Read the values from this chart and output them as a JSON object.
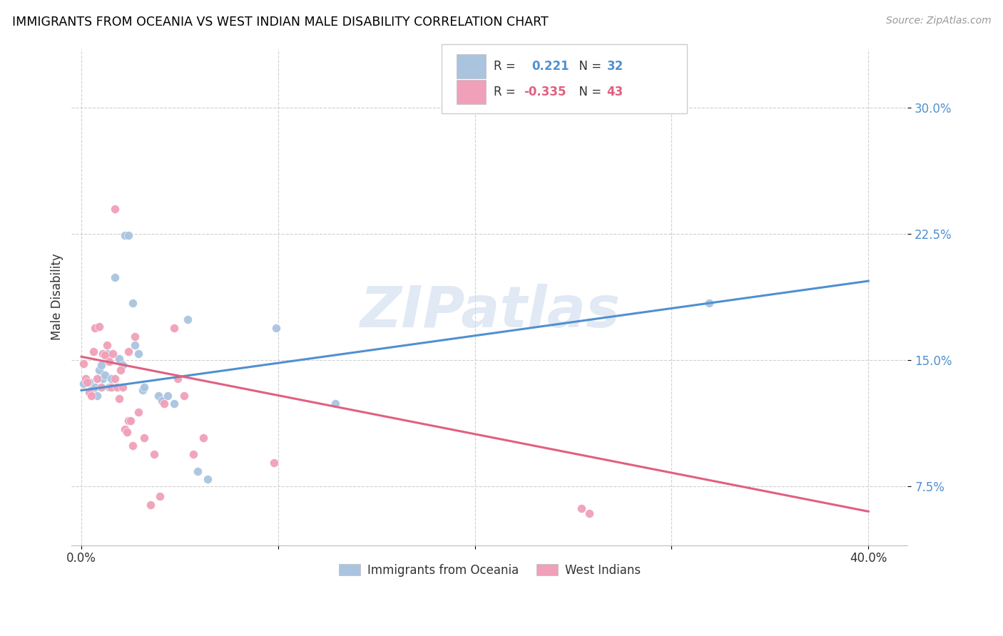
{
  "title": "IMMIGRANTS FROM OCEANIA VS WEST INDIAN MALE DISABILITY CORRELATION CHART",
  "source": "Source: ZipAtlas.com",
  "ylabel": "Male Disability",
  "y_ticks": [
    0.075,
    0.15,
    0.225,
    0.3
  ],
  "y_tick_labels": [
    "7.5%",
    "15.0%",
    "22.5%",
    "30.0%"
  ],
  "x_ticks": [
    0.0,
    0.1,
    0.2,
    0.3,
    0.4
  ],
  "x_tick_labels": [
    "0.0%",
    "",
    "",
    "",
    "40.0%"
  ],
  "xlim": [
    -0.005,
    0.42
  ],
  "ylim": [
    0.04,
    0.335
  ],
  "color_blue": "#aac4e0",
  "color_pink": "#f0a0b8",
  "line_blue": "#5090d0",
  "line_pink": "#e06080",
  "watermark": "ZIPatlas",
  "oceania_points": [
    [
      0.001,
      0.136
    ],
    [
      0.004,
      0.137
    ],
    [
      0.005,
      0.132
    ],
    [
      0.007,
      0.134
    ],
    [
      0.008,
      0.129
    ],
    [
      0.009,
      0.144
    ],
    [
      0.01,
      0.147
    ],
    [
      0.011,
      0.139
    ],
    [
      0.012,
      0.141
    ],
    [
      0.013,
      0.154
    ],
    [
      0.014,
      0.134
    ],
    [
      0.015,
      0.139
    ],
    [
      0.017,
      0.199
    ],
    [
      0.019,
      0.151
    ],
    [
      0.021,
      0.147
    ],
    [
      0.022,
      0.224
    ],
    [
      0.024,
      0.224
    ],
    [
      0.026,
      0.184
    ],
    [
      0.027,
      0.159
    ],
    [
      0.029,
      0.154
    ],
    [
      0.031,
      0.132
    ],
    [
      0.032,
      0.134
    ],
    [
      0.039,
      0.129
    ],
    [
      0.041,
      0.126
    ],
    [
      0.044,
      0.129
    ],
    [
      0.047,
      0.124
    ],
    [
      0.054,
      0.174
    ],
    [
      0.059,
      0.084
    ],
    [
      0.064,
      0.079
    ],
    [
      0.099,
      0.169
    ],
    [
      0.129,
      0.124
    ],
    [
      0.319,
      0.184
    ]
  ],
  "west_indian_points": [
    [
      0.001,
      0.148
    ],
    [
      0.002,
      0.139
    ],
    [
      0.003,
      0.137
    ],
    [
      0.004,
      0.131
    ],
    [
      0.005,
      0.129
    ],
    [
      0.006,
      0.155
    ],
    [
      0.007,
      0.169
    ],
    [
      0.008,
      0.139
    ],
    [
      0.009,
      0.17
    ],
    [
      0.01,
      0.134
    ],
    [
      0.011,
      0.154
    ],
    [
      0.012,
      0.153
    ],
    [
      0.013,
      0.159
    ],
    [
      0.014,
      0.149
    ],
    [
      0.015,
      0.134
    ],
    [
      0.016,
      0.154
    ],
    [
      0.017,
      0.139
    ],
    [
      0.017,
      0.24
    ],
    [
      0.018,
      0.134
    ],
    [
      0.019,
      0.127
    ],
    [
      0.02,
      0.144
    ],
    [
      0.021,
      0.134
    ],
    [
      0.022,
      0.109
    ],
    [
      0.023,
      0.107
    ],
    [
      0.024,
      0.155
    ],
    [
      0.024,
      0.114
    ],
    [
      0.025,
      0.114
    ],
    [
      0.026,
      0.099
    ],
    [
      0.027,
      0.164
    ],
    [
      0.029,
      0.119
    ],
    [
      0.032,
      0.104
    ],
    [
      0.035,
      0.064
    ],
    [
      0.037,
      0.094
    ],
    [
      0.04,
      0.069
    ],
    [
      0.042,
      0.124
    ],
    [
      0.047,
      0.169
    ],
    [
      0.049,
      0.139
    ],
    [
      0.052,
      0.129
    ],
    [
      0.057,
      0.094
    ],
    [
      0.062,
      0.104
    ],
    [
      0.254,
      0.062
    ],
    [
      0.258,
      0.059
    ],
    [
      0.098,
      0.089
    ]
  ],
  "blue_line_x": [
    0.0,
    0.4
  ],
  "blue_line_y": [
    0.132,
    0.197
  ],
  "pink_line_x": [
    0.0,
    0.4
  ],
  "pink_line_y": [
    0.152,
    0.06
  ]
}
